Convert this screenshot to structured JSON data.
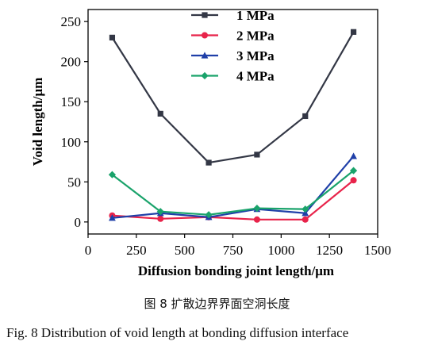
{
  "caption": {
    "cn": "图 8   扩散边界界面空洞长度",
    "en": "Fig. 8    Distribution of void length at bonding diffusion interface"
  },
  "chart_data": {
    "type": "line",
    "title": "",
    "xlabel": "Diffusion bonding joint length/μm",
    "ylabel": "Void length/μm",
    "xlim": [
      0,
      1500
    ],
    "ylim": [
      -15,
      265
    ],
    "x_ticks": [
      0,
      250,
      500,
      750,
      1000,
      1250,
      1500
    ],
    "y_ticks": [
      0,
      50,
      100,
      150,
      200,
      250
    ],
    "grid": false,
    "legend_position": "top-center",
    "series": [
      {
        "name": "1 MPa",
        "color": "#333745",
        "marker": "square",
        "x": [
          125,
          375,
          625,
          875,
          1125,
          1375
        ],
        "y": [
          230,
          135,
          74,
          84,
          132,
          237
        ]
      },
      {
        "name": "2 MPa",
        "color": "#e8234a",
        "marker": "circle",
        "x": [
          125,
          375,
          625,
          875,
          1125,
          1375
        ],
        "y": [
          8,
          4,
          6,
          3,
          3,
          52
        ]
      },
      {
        "name": "3 MPa",
        "color": "#1f3fa8",
        "marker": "triangle",
        "x": [
          125,
          375,
          625,
          875,
          1125,
          1375
        ],
        "y": [
          5,
          11,
          6,
          16,
          11,
          82
        ]
      },
      {
        "name": "4 MPa",
        "color": "#1aa36b",
        "marker": "diamond",
        "x": [
          125,
          375,
          625,
          875,
          1125,
          1375
        ],
        "y": [
          59,
          13,
          9,
          17,
          16,
          64
        ]
      }
    ]
  }
}
